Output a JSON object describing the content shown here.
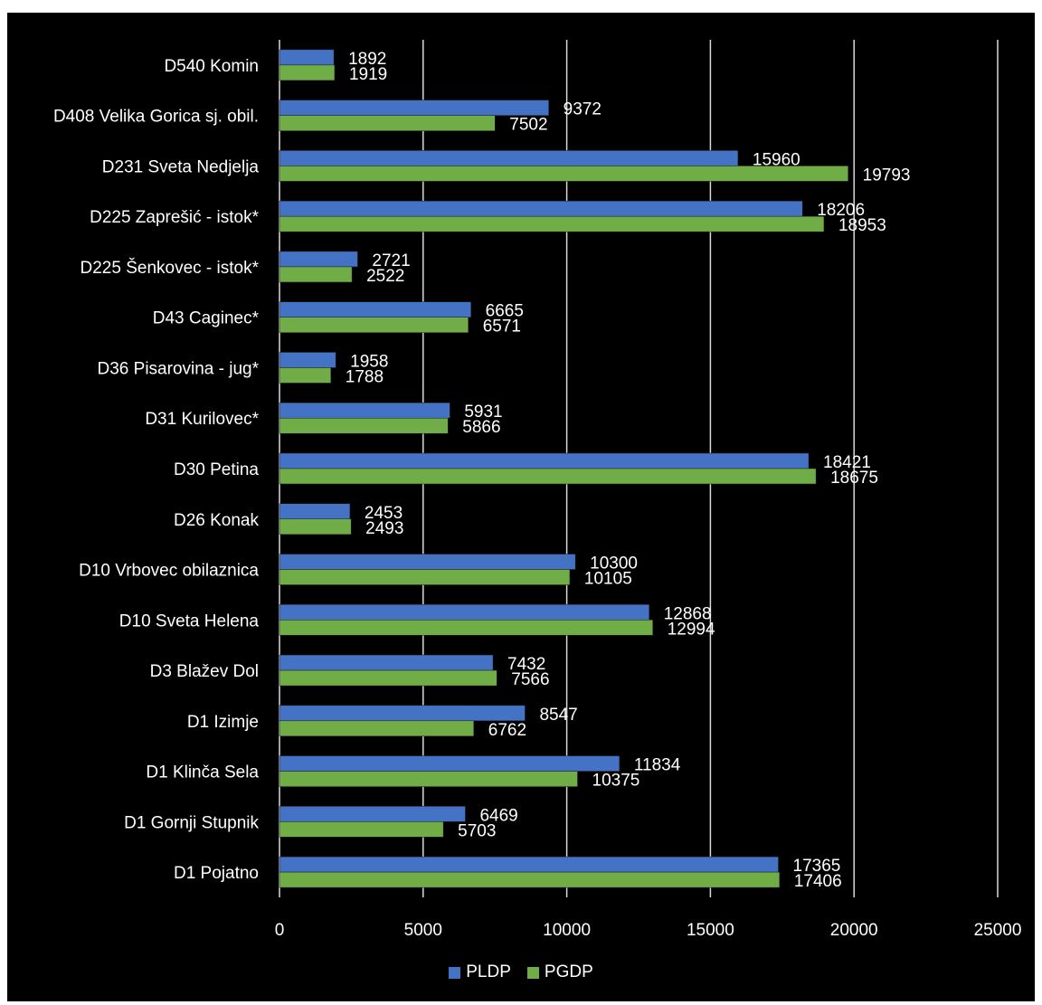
{
  "chart_data": {
    "type": "bar",
    "orientation": "horizontal",
    "categories": [
      "D540 Komin",
      "D408 Velika Gorica sj. obil.",
      "D231 Sveta Nedjelja",
      "D225 Zaprešić - istok*",
      "D225 Šenkovec - istok*",
      "D43 Caginec*",
      "D36 Pisarovina - jug*",
      "D31 Kurilovec*",
      "D30 Petina",
      "D26 Konak",
      "D10 Vrbovec obilaznica",
      "D10 Sveta Helena",
      "D3 Blažev Dol",
      "D1 Izimje",
      "D1 Klinča Sela",
      "D1 Gornji Stupnik",
      "D1 Pojatno"
    ],
    "series": [
      {
        "name": "PLDP",
        "color": "#4472C4",
        "values": [
          1892,
          9372,
          15960,
          18206,
          2721,
          6665,
          1958,
          5931,
          18421,
          2453,
          10300,
          12868,
          7432,
          8547,
          11834,
          6469,
          17365
        ]
      },
      {
        "name": "PGDP",
        "color": "#70AD47",
        "values": [
          1919,
          7502,
          19793,
          18953,
          2522,
          6571,
          1788,
          5866,
          18675,
          2493,
          10105,
          12994,
          7566,
          6762,
          10375,
          5703,
          17406
        ]
      }
    ],
    "xlim": [
      0,
      25000
    ],
    "xticks": [
      "0",
      "5000",
      "10000",
      "15000",
      "20000",
      "25000"
    ],
    "grid": "vertical",
    "legend_position": "bottom",
    "background": "#000000",
    "text_color": "#ffffff"
  }
}
